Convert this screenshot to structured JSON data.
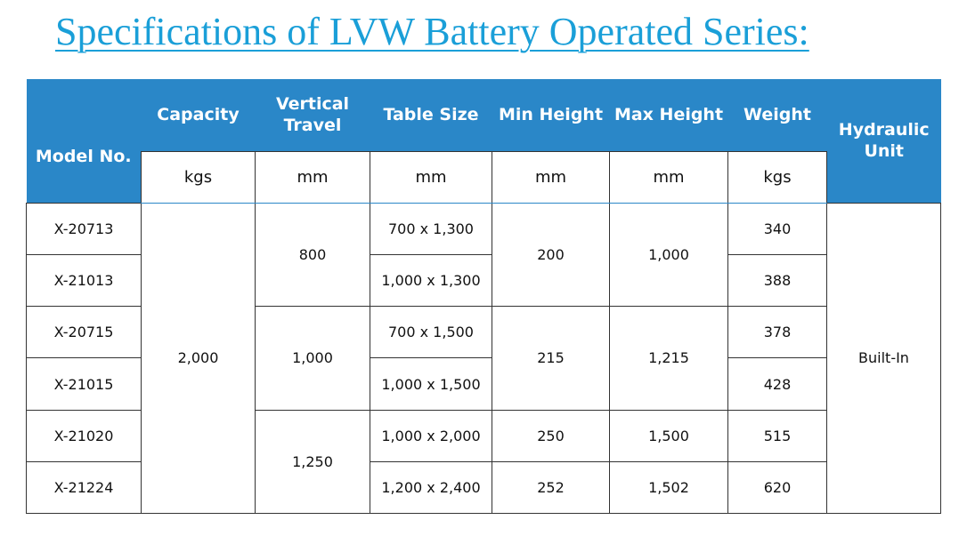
{
  "title": "Specifications of LVW Battery Operated Series:",
  "headers": {
    "model": "Model No.",
    "capacity": "Capacity",
    "travel": "Vertical Travel",
    "table_size": "Table Size",
    "min_height": "Min Height",
    "max_height": "Max Height",
    "weight": "Weight",
    "hydraulic": "Hydraulic Unit"
  },
  "units": {
    "capacity": "kgs",
    "travel": "mm",
    "table_size": "mm",
    "min_height": "mm",
    "max_height": "mm",
    "weight": "kgs"
  },
  "models": [
    "X-20713",
    "X-21013",
    "X-20715",
    "X-21015",
    "X-21020",
    "X-21224"
  ],
  "capacity": "2,000",
  "travel": [
    "800",
    "1,000",
    "1,250"
  ],
  "table_sizes": [
    "700 x 1,300",
    "1,000 x 1,300",
    "700 x 1,500",
    "1,000 x 1,500",
    "1,000 x 2,000",
    "1,200 x 2,400"
  ],
  "min_height": [
    "200",
    "215",
    "250",
    "252"
  ],
  "max_height": [
    "1,000",
    "1,215",
    "1,500",
    "1,502"
  ],
  "weights": [
    "340",
    "388",
    "378",
    "428",
    "515",
    "620"
  ],
  "hydraulic": "Built-In",
  "colors": {
    "title": "#1a9fd8",
    "header_bg": "#2a87c8",
    "header_text": "#ffffff"
  }
}
